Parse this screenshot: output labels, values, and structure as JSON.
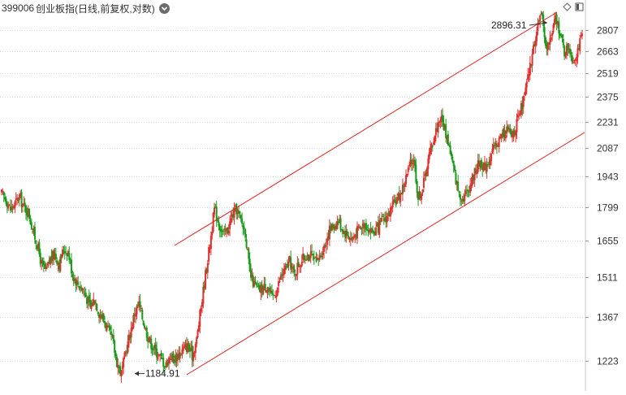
{
  "header": {
    "code": "399006",
    "name": "创业板指(日线,前复权,对数)"
  },
  "toolbar": {
    "icons": [
      "diamond-icon",
      "panel-toggle-icon"
    ]
  },
  "chart_data": {
    "type": "candlestick",
    "scale": "log",
    "ylim": [
      1160,
      2980
    ],
    "yticks": [
      1223,
      1367,
      1511,
      1655,
      1799,
      1943,
      2087,
      2231,
      2375,
      2519,
      2663,
      2807
    ],
    "grid": true,
    "colors": {
      "up": "#e03030",
      "down": "#1a9a1a",
      "channel": "#e02020",
      "grid": "#d9d9d9"
    },
    "annotations": [
      {
        "label": "2896.31",
        "type": "high",
        "value": 2896.31
      },
      {
        "label": "1184.91",
        "type": "low",
        "value": 1184.91
      }
    ],
    "path_closes": [
      1860,
      1835,
      1790,
      1815,
      1850,
      1800,
      1780,
      1700,
      1640,
      1560,
      1530,
      1580,
      1600,
      1560,
      1620,
      1610,
      1520,
      1490,
      1470,
      1440,
      1400,
      1430,
      1380,
      1360,
      1320,
      1290,
      1220,
      1185,
      1250,
      1310,
      1380,
      1410,
      1350,
      1300,
      1270,
      1250,
      1230,
      1210,
      1240,
      1230,
      1245,
      1260,
      1270,
      1240,
      1290,
      1400,
      1520,
      1640,
      1790,
      1730,
      1680,
      1700,
      1760,
      1790,
      1740,
      1690,
      1520,
      1480,
      1460,
      1470,
      1480,
      1430,
      1460,
      1510,
      1540,
      1570,
      1520,
      1560,
      1580,
      1600,
      1590,
      1560,
      1600,
      1640,
      1700,
      1720,
      1740,
      1700,
      1680,
      1660,
      1690,
      1710,
      1730,
      1700,
      1690,
      1710,
      1740,
      1760,
      1790,
      1830,
      1860,
      1920,
      1990,
      2040,
      1840,
      1890,
      2000,
      2100,
      2180,
      2260,
      2190,
      2100,
      1980,
      1880,
      1840,
      1870,
      1920,
      1980,
      2020,
      1990,
      2030,
      2080,
      2120,
      2160,
      2190,
      2150,
      2200,
      2280,
      2380,
      2520,
      2680,
      2860,
      2896,
      2680,
      2760,
      2890,
      2800,
      2650,
      2700,
      2600,
      2680,
      2760
    ]
  }
}
